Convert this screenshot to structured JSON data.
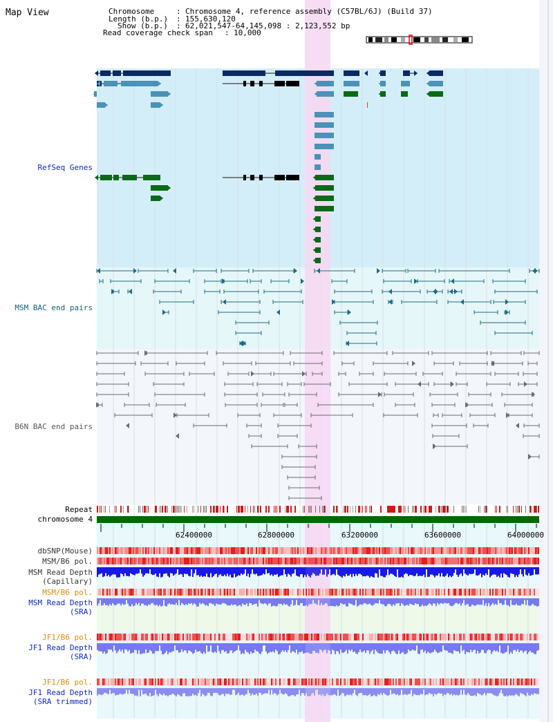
{
  "page_title": "Map View",
  "header": {
    "line1_key": "Chromosome",
    "line1_val": "Chromosome 4, reference assembly (C57BL/6J) (Build 37)",
    "line2_key": "Length (b.p.)",
    "line2_val": "155,630,120",
    "line3_key": "Show (b.p.)",
    "line3_val": "62,021,547-64,145,098 : 2,123,552 bp",
    "line4_key": "Read coverage check span",
    "line4_val": "10,000"
  },
  "tracks": {
    "refseq": "RefSeq Genes",
    "msm_bac": "MSM BAC end pairs",
    "b6n_bac": "B6N BAC end pairs",
    "repeat": "Repeat",
    "chromosome": "chromosome 4",
    "dbsnp": "dbSNP(Mouse)",
    "msm_pol_1": "MSM/B6 pol.",
    "msm_depth_cap_1": "MSM Read Depth",
    "msm_depth_cap_2": "(Capillary)",
    "msm_pol_2": "MSM/B6 pol.",
    "msm_depth_sra_1": "MSM Read Depth",
    "msm_depth_sra_2": "(SRA)",
    "jf1_pol_1": "JF1/B6 pol.",
    "jf1_depth_sra_1": "JF1 Read Depth",
    "jf1_depth_sra_2": "(SRA)",
    "jf1_pol_2": "JF1/B6 pol.",
    "jf1_depth_trim_1": "JF1 Read Depth",
    "jf1_depth_trim_2": "(SRA trimmed)"
  },
  "axis": {
    "ticks": [
      "62400000",
      "62800000",
      "63200000",
      "63600000",
      "64000000"
    ]
  },
  "colors": {
    "refseq_bg": "#d4eef9",
    "bac_bg": "#e6f7f9",
    "b6n_bg": "#f3f6fb",
    "highlight": "#f6d7f2",
    "gene_dark": "#0b2a63",
    "gene_mid": "#4a92b8",
    "gene_green": "#0b6a16",
    "msm_pair": "#1c6a85",
    "b6n_pair": "#6b6b6b",
    "pol_red": "#e83030",
    "depth_blue": "#1818e8",
    "depth_light": "#7878f0",
    "label_blue": "#0b27c8",
    "label_teal": "#10607d",
    "label_orange": "#e08a00"
  }
}
